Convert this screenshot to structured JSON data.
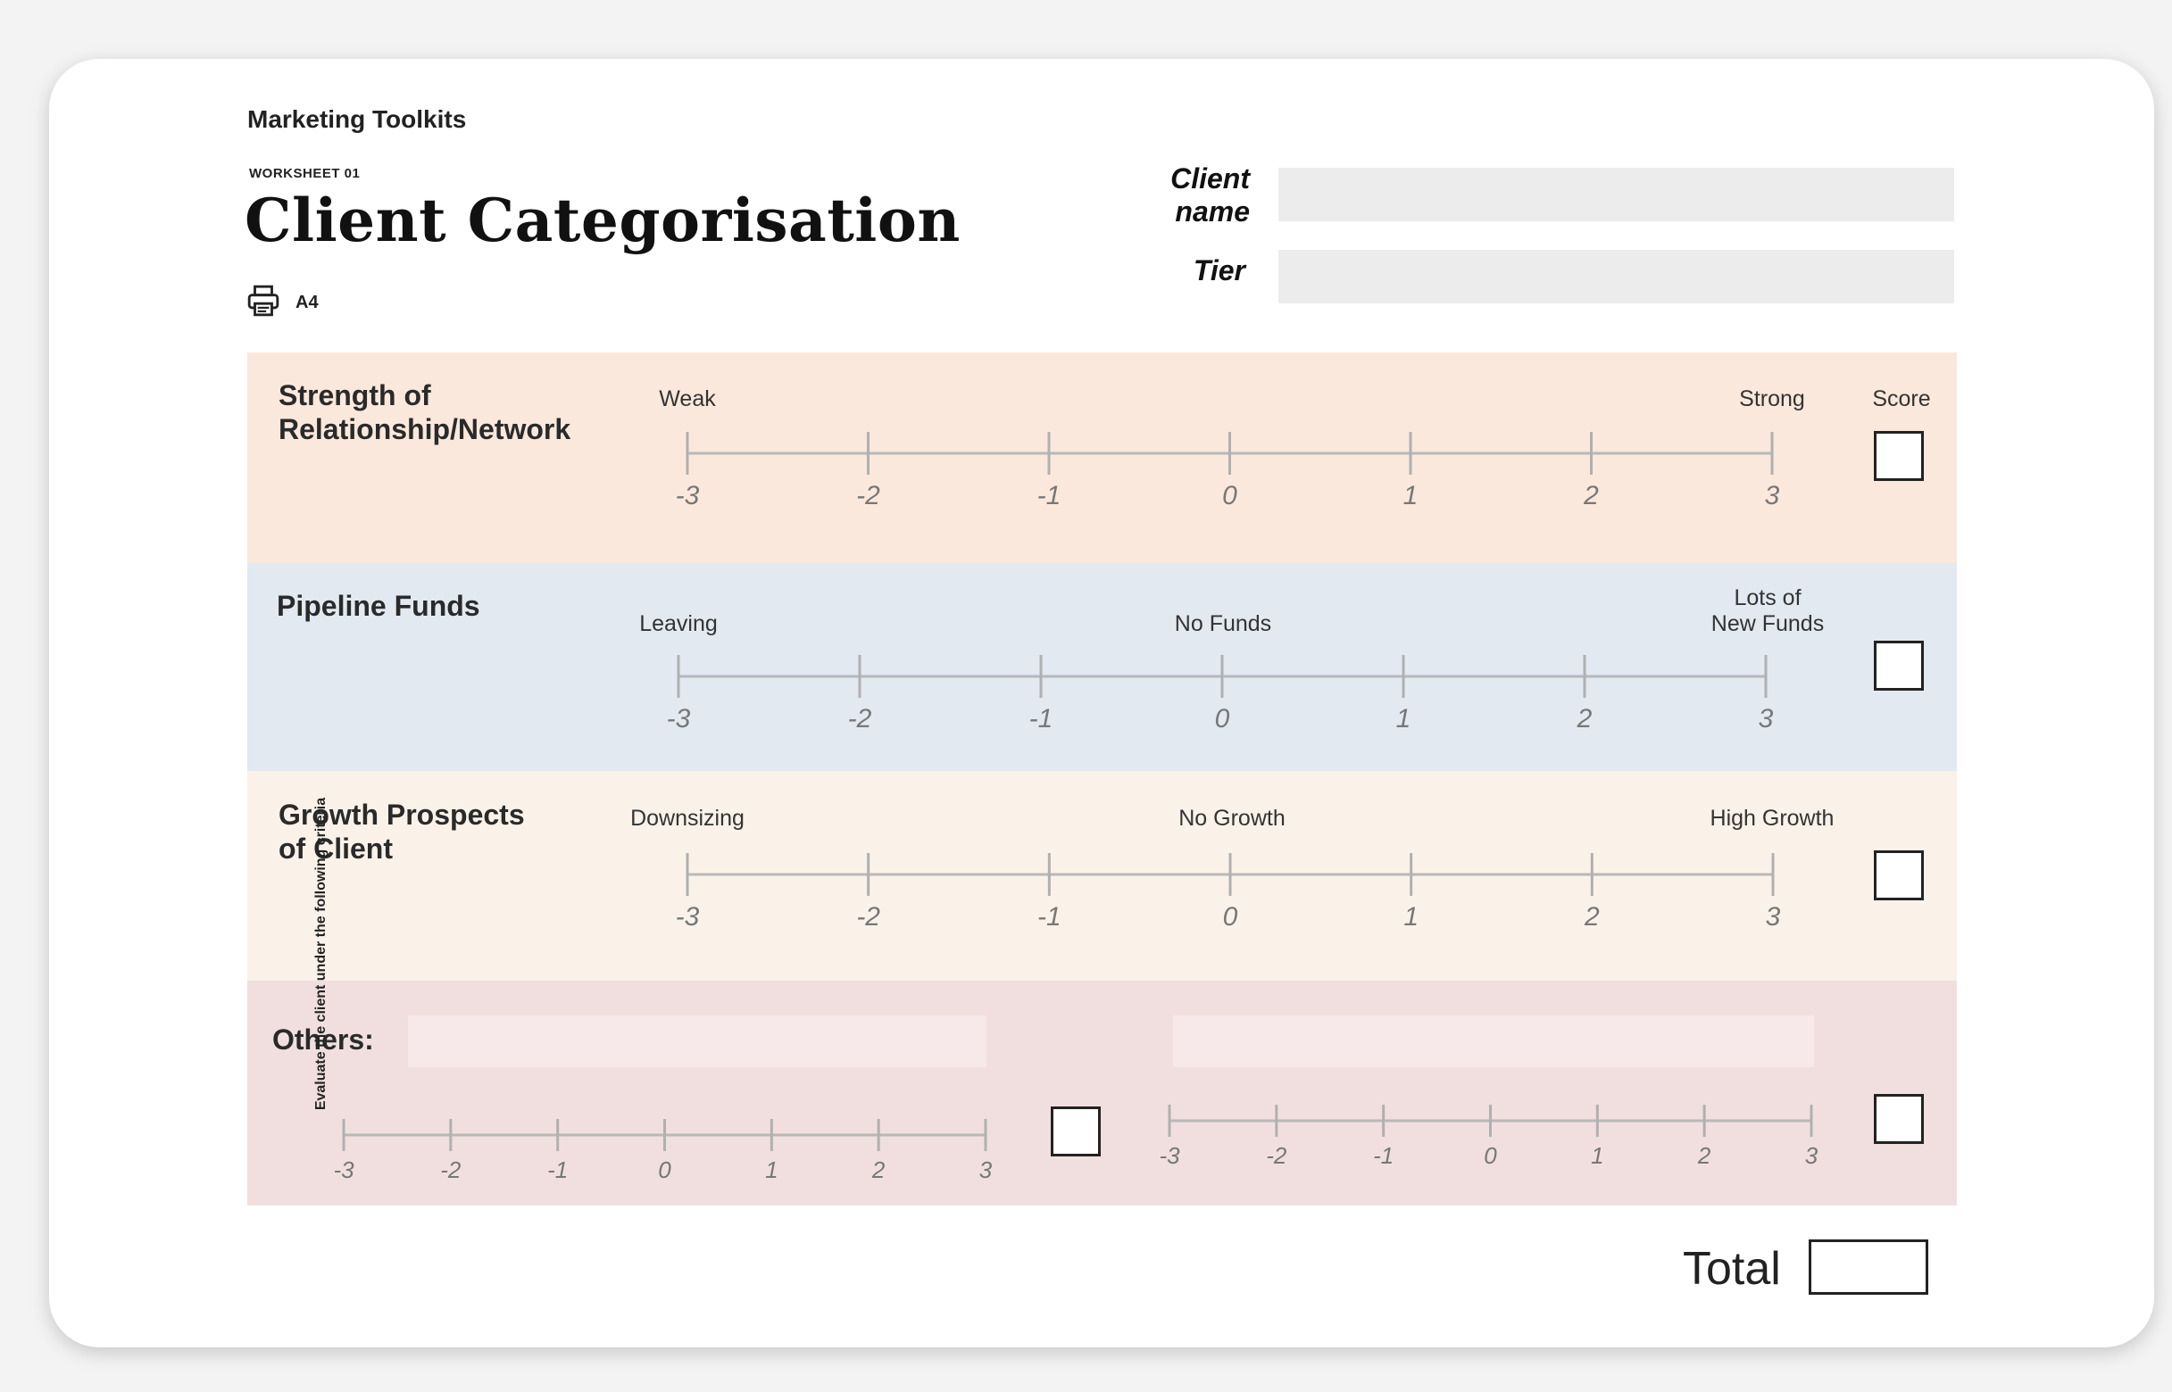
{
  "header": {
    "brand": "Marketing Toolkits",
    "worksheet_no": "WORKSHEET 01",
    "title": "Client Categorisation",
    "print_size": "A4",
    "print_icon": "printer-icon"
  },
  "fields": {
    "client_name_label_line1": "Client",
    "client_name_label_line2": "name",
    "client_name_value": "",
    "tier_label": "Tier",
    "tier_value": ""
  },
  "side_text": "Evaluate the client under the following criteria",
  "score_label": "Score",
  "scale_ticks": [
    "-3",
    "-2",
    "-1",
    "0",
    "1",
    "2",
    "3"
  ],
  "criteria": [
    {
      "name_line1": "Strength of",
      "name_line2": "Relationship/Network",
      "left_anchor": "Weak",
      "mid_anchor": "",
      "right_anchor_line1": "Strong",
      "right_anchor_line2": "",
      "color": "#fbe8dc"
    },
    {
      "name_line1": "Pipeline Funds",
      "name_line2": "",
      "left_anchor": "Leaving",
      "mid_anchor": "No Funds",
      "right_anchor_line1": "Lots of",
      "right_anchor_line2": "New Funds",
      "color": "#e2e9f1"
    },
    {
      "name_line1": "Growth Prospects",
      "name_line2": "of Client",
      "left_anchor": "Downsizing",
      "mid_anchor": "No Growth",
      "right_anchor_line1": "High Growth",
      "right_anchor_line2": "",
      "color": "#faf2e8"
    }
  ],
  "others": {
    "label": "Others:",
    "field1_value": "",
    "field2_value": "",
    "color": "#f1dfdf"
  },
  "total_label": "Total"
}
